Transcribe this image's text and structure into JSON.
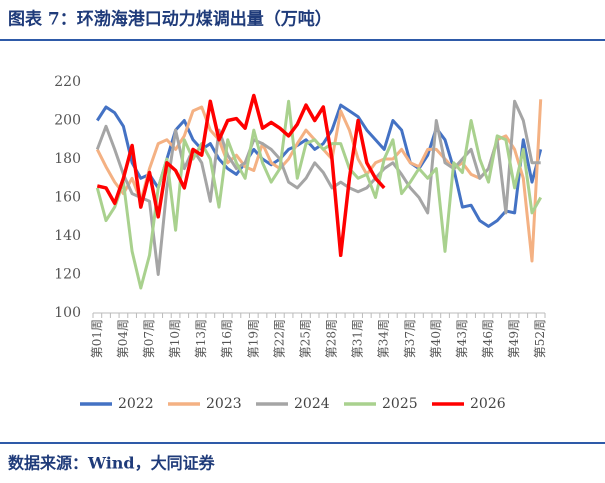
{
  "title": "图表 7：环渤海港口动力煤调出量（万吨）",
  "source": "数据来源：Wind，大同证券",
  "chart_data": {
    "type": "line",
    "categories": [
      "第01周",
      null,
      null,
      "第04周",
      null,
      null,
      "第07周",
      null,
      null,
      "第10周",
      null,
      null,
      "第13周",
      null,
      null,
      "第16周",
      null,
      null,
      "第19周",
      null,
      null,
      "第22周",
      null,
      null,
      "第25周",
      null,
      null,
      "第28周",
      null,
      null,
      "第31周",
      null,
      null,
      "第34周",
      null,
      null,
      "第37周",
      null,
      null,
      "第40周",
      null,
      null,
      "第43周",
      null,
      null,
      "第46周",
      null,
      null,
      "第49周",
      null,
      null,
      "第52周"
    ],
    "series": [
      {
        "name": "2022",
        "color": "#4472c4",
        "values": [
          200,
          207,
          204,
          197,
          178,
          170,
          172,
          165,
          180,
          195,
          200,
          190,
          185,
          188,
          180,
          175,
          172,
          178,
          185,
          180,
          177,
          180,
          185,
          187,
          190,
          185,
          188,
          195,
          208,
          205,
          202,
          195,
          190,
          185,
          200,
          195,
          178,
          175,
          182,
          196,
          190,
          175,
          155,
          156,
          148,
          145,
          148,
          153,
          152,
          190,
          168,
          185
        ]
      },
      {
        "name": "2023",
        "color": "#f4b183",
        "values": [
          185,
          176,
          168,
          162,
          170,
          158,
          175,
          188,
          190,
          185,
          192,
          205,
          207,
          195,
          190,
          178,
          182,
          176,
          174,
          188,
          178,
          175,
          180,
          188,
          195,
          190,
          185,
          180,
          205,
          195,
          180,
          172,
          178,
          180,
          180,
          185,
          178,
          176,
          185,
          185,
          180,
          175,
          178,
          172,
          170,
          175,
          190,
          192,
          185,
          170,
          127,
          211
        ]
      },
      {
        "name": "2024",
        "color": "#a5a5a5",
        "values": [
          185,
          197,
          185,
          172,
          162,
          160,
          158,
          120,
          165,
          195,
          175,
          185,
          178,
          158,
          195,
          182,
          175,
          178,
          190,
          188,
          185,
          180,
          168,
          165,
          170,
          178,
          173,
          165,
          168,
          165,
          163,
          165,
          170,
          175,
          178,
          172,
          165,
          160,
          152,
          200,
          178,
          175,
          180,
          185,
          170,
          175,
          190,
          152,
          210,
          200,
          178,
          178
        ]
      },
      {
        "name": "2025",
        "color": "#a9d18e",
        "values": [
          165,
          148,
          155,
          168,
          132,
          113,
          130,
          165,
          180,
          143,
          190,
          180,
          188,
          180,
          155,
          190,
          178,
          170,
          195,
          178,
          168,
          175,
          210,
          170,
          188,
          190,
          185,
          188,
          188,
          175,
          170,
          172,
          160,
          180,
          190,
          162,
          168,
          175,
          170,
          175,
          132,
          178,
          173,
          200,
          180,
          168,
          192,
          190,
          165,
          185,
          152,
          160
        ]
      },
      {
        "name": "2026",
        "color": "#ff0000",
        "values": [
          166,
          165,
          157,
          170,
          187,
          155,
          173,
          150,
          178,
          174,
          165,
          185,
          182,
          210,
          190,
          200,
          201,
          196,
          213,
          196,
          199,
          196,
          192,
          198,
          208,
          200,
          207,
          180,
          130,
          170,
          200,
          178,
          170,
          165,
          null,
          null,
          null,
          null,
          null,
          null,
          null,
          null,
          null,
          null,
          null,
          null,
          null,
          null,
          null,
          null,
          null,
          null
        ]
      }
    ],
    "ylim": [
      100,
      220
    ],
    "yticks": [
      100,
      120,
      140,
      160,
      180,
      200,
      220
    ],
    "grid": false
  }
}
